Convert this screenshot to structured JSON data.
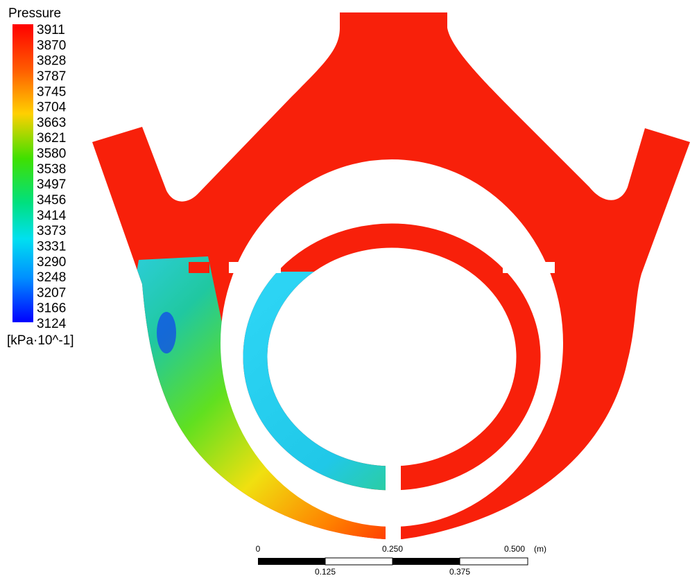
{
  "legend": {
    "title": "Pressure",
    "labels": [
      "3911",
      "3870",
      "3828",
      "3787",
      "3745",
      "3704",
      "3663",
      "3621",
      "3580",
      "3538",
      "3497",
      "3456",
      "3414",
      "3373",
      "3331",
      "3290",
      "3248",
      "3207",
      "3166",
      "3124"
    ],
    "unit": "[kPa·10^-1]"
  },
  "scale_bar": {
    "labels_top": [
      "0",
      "0.250",
      "0.500"
    ],
    "unit": "(m)",
    "labels_bottom": [
      "0.125",
      "0.375"
    ]
  }
}
